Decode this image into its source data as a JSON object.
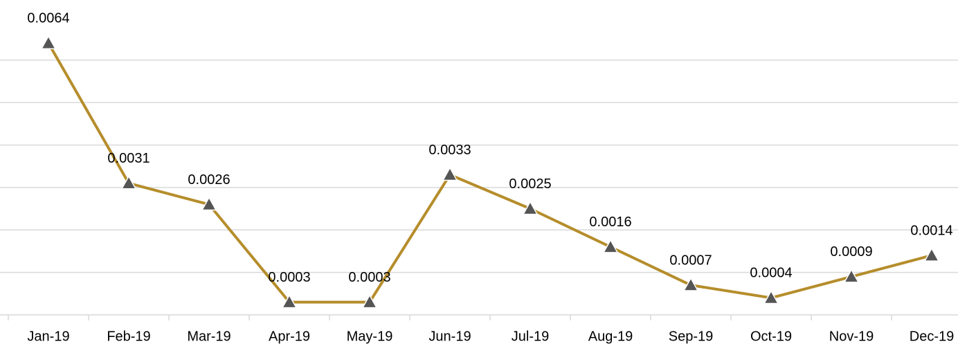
{
  "chart_data": {
    "type": "line",
    "categories": [
      "Jan-19",
      "Feb-19",
      "Mar-19",
      "Apr-19",
      "May-19",
      "Jun-19",
      "Jul-19",
      "Aug-19",
      "Sep-19",
      "Oct-19",
      "Nov-19",
      "Dec-19"
    ],
    "series": [
      {
        "color": "#b58d2b",
        "marker_color": "#555555",
        "values": [
          0.0064,
          0.0031,
          0.0026,
          0.0003,
          0.0003,
          0.0033,
          0.0025,
          0.0016,
          0.0007,
          0.0004,
          0.0009,
          0.0014
        ]
      }
    ],
    "ylim": [
      0,
      0.0074
    ],
    "yticks": [
      0,
      0.001,
      0.002,
      0.003,
      0.004,
      0.005,
      0.006
    ],
    "grid": true
  }
}
